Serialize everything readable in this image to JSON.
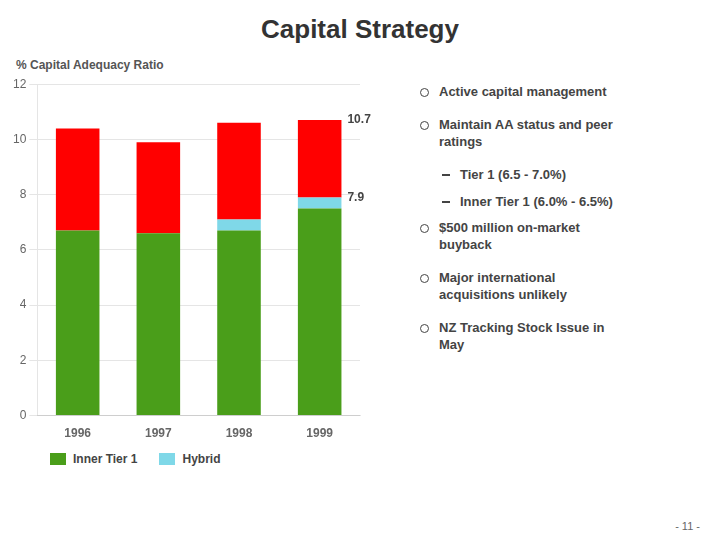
{
  "chart_data": {
    "type": "bar",
    "title": "Capital Strategy",
    "y_label": "% Capital Adequacy Ratio",
    "categories": [
      "1996",
      "1997",
      "1998",
      "1999"
    ],
    "stacked": true,
    "series": [
      {
        "name": "Inner Tier 1",
        "color": "#4a9e1a",
        "values": [
          6.7,
          6.6,
          6.7,
          7.5
        ]
      },
      {
        "name": "Hybrid",
        "color": "#7fd8e8",
        "values": [
          0.0,
          0.0,
          0.4,
          0.4
        ]
      },
      {
        "color": "#ff0000",
        "values": [
          3.7,
          3.3,
          3.5,
          2.8
        ]
      }
    ],
    "ylim": [
      0,
      12
    ],
    "yticks": [
      0,
      2,
      4,
      6,
      8,
      10,
      12
    ],
    "grid": true,
    "legend": "bottom",
    "annotations": [
      {
        "text": "10.7",
        "x": "1999",
        "y": 10.7
      },
      {
        "text": "7.9",
        "x": "1999",
        "y": 7.9
      }
    ],
    "bullets": [
      {
        "text": "Active capital management"
      },
      {
        "text": "Maintain AA status and peer\nratings",
        "sub": [
          "Tier 1 (6.5 - 7.0%)",
          "Inner Tier 1 (6.0% - 6.5%)"
        ]
      },
      {
        "text": "$500 million on-market\nbuyback"
      },
      {
        "text": "Major international\nacquisitions unlikely"
      },
      {
        "text": "NZ Tracking Stock Issue in\nMay"
      }
    ],
    "page_number": "- 11 -"
  }
}
